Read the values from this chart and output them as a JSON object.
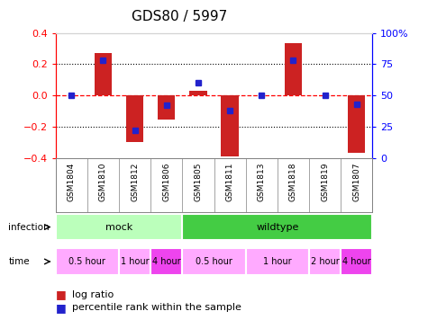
{
  "title": "GDS80 / 5997",
  "samples": [
    "GSM1804",
    "GSM1810",
    "GSM1812",
    "GSM1806",
    "GSM1805",
    "GSM1811",
    "GSM1813",
    "GSM1818",
    "GSM1819",
    "GSM1807"
  ],
  "log_ratio": [
    0.0,
    0.27,
    -0.3,
    -0.155,
    0.03,
    -0.39,
    0.0,
    0.335,
    0.0,
    -0.365
  ],
  "percentile_rank": [
    50,
    78,
    22,
    42,
    60,
    38,
    50,
    78,
    50,
    43
  ],
  "ylim": [
    -0.4,
    0.4
  ],
  "y2lim": [
    0,
    100
  ],
  "yticks_left": [
    -0.4,
    -0.2,
    0.0,
    0.2,
    0.4
  ],
  "yticks_right": [
    0,
    25,
    50,
    75,
    100
  ],
  "bar_color": "#cc2222",
  "blue_color": "#2222cc",
  "infection_mock_color": "#bbffbb",
  "infection_wild_color": "#44cc44",
  "time_light_color": "#ffaaff",
  "time_dark_color": "#ee44ee",
  "infection_groups": [
    {
      "label": "mock",
      "start": 0,
      "end": 4
    },
    {
      "label": "wildtype",
      "start": 4,
      "end": 10
    }
  ],
  "time_groups": [
    {
      "label": "0.5 hour",
      "start": 0,
      "end": 2,
      "dark": false
    },
    {
      "label": "1 hour",
      "start": 2,
      "end": 3,
      "dark": false
    },
    {
      "label": "4 hour",
      "start": 3,
      "end": 4,
      "dark": true
    },
    {
      "label": "0.5 hour",
      "start": 4,
      "end": 6,
      "dark": false
    },
    {
      "label": "1 hour",
      "start": 6,
      "end": 8,
      "dark": false
    },
    {
      "label": "2 hour",
      "start": 8,
      "end": 9,
      "dark": false
    },
    {
      "label": "4 hour",
      "start": 9,
      "end": 10,
      "dark": true
    }
  ],
  "legend_items": [
    {
      "color": "#cc2222",
      "label": "log ratio"
    },
    {
      "color": "#2222cc",
      "label": "percentile rank within the sample"
    }
  ]
}
